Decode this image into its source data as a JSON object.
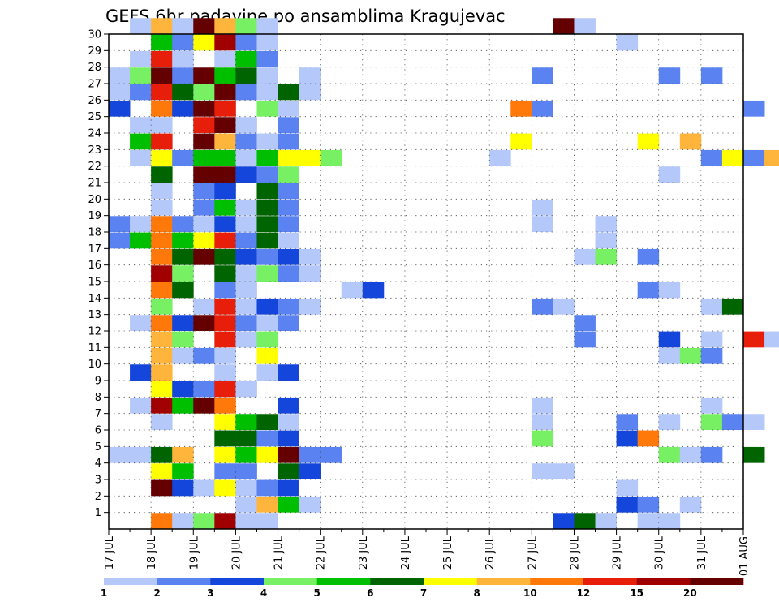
{
  "chart_data": {
    "type": "heatmap",
    "title": "GEFS 6hr padavine po ansamblima Kragujevac",
    "x_tick_labels": [
      "17 JUL",
      "18 JUL",
      "19 JUL",
      "20 JUL",
      "21 JUL",
      "22 JUL",
      "23 JUL",
      "24 JUL",
      "25 JUL",
      "26 JUL",
      "27 JUL",
      "28 JUL",
      "29 JUL",
      "30 JUL",
      "31 JUL",
      "01 AUG"
    ],
    "y_tick_labels": [
      "1",
      "2",
      "3",
      "4",
      "5",
      "6",
      "7",
      "8",
      "9",
      "10",
      "11",
      "12",
      "13",
      "14",
      "15",
      "16",
      "17",
      "18",
      "19",
      "20",
      "21",
      "22",
      "23",
      "24",
      "25",
      "26",
      "27",
      "28",
      "29",
      "30"
    ],
    "ylim": [
      0,
      30
    ],
    "grid": true,
    "legend": {
      "placement": "bottom",
      "colors": [
        "#b4c8fa",
        "#5a82f0",
        "#1446dc",
        "#78f064",
        "#00be00",
        "#006400",
        "#ffff00",
        "#ffb43c",
        "#ff780a",
        "#e61e0a",
        "#a00000",
        "#640000"
      ],
      "labels": [
        "1",
        "2",
        "3",
        "4",
        "5",
        "6",
        "7",
        "8",
        "10",
        "12",
        "15",
        "20"
      ]
    },
    "cells": [
      [
        1,
        30,
        1
      ],
      [
        2,
        30,
        8
      ],
      [
        3,
        30,
        1
      ],
      [
        4,
        30,
        12
      ],
      [
        5,
        30,
        8
      ],
      [
        6,
        30,
        4
      ],
      [
        7,
        30,
        1
      ],
      [
        21,
        30,
        12
      ],
      [
        22,
        30,
        1
      ],
      [
        2,
        29,
        5
      ],
      [
        3,
        29,
        2
      ],
      [
        4,
        29,
        7
      ],
      [
        5,
        29,
        11
      ],
      [
        6,
        29,
        2
      ],
      [
        7,
        29,
        1
      ],
      [
        24,
        29,
        1
      ],
      [
        1,
        28,
        1
      ],
      [
        2,
        28,
        10
      ],
      [
        3,
        28,
        1
      ],
      [
        5,
        28,
        1
      ],
      [
        6,
        28,
        5
      ],
      [
        7,
        28,
        2
      ],
      [
        0,
        27,
        1
      ],
      [
        1,
        27,
        4
      ],
      [
        2,
        27,
        12
      ],
      [
        3,
        27,
        2
      ],
      [
        4,
        27,
        12
      ],
      [
        5,
        27,
        5
      ],
      [
        6,
        27,
        6
      ],
      [
        7,
        27,
        1
      ],
      [
        9,
        27,
        1
      ],
      [
        20,
        27,
        2
      ],
      [
        26,
        27,
        2
      ],
      [
        28,
        27,
        2
      ],
      [
        0,
        26,
        1
      ],
      [
        1,
        26,
        2
      ],
      [
        2,
        26,
        10
      ],
      [
        3,
        26,
        6
      ],
      [
        4,
        26,
        4
      ],
      [
        5,
        26,
        12
      ],
      [
        6,
        26,
        2
      ],
      [
        7,
        26,
        1
      ],
      [
        8,
        26,
        6
      ],
      [
        9,
        26,
        1
      ],
      [
        0,
        25,
        3
      ],
      [
        2,
        25,
        9
      ],
      [
        3,
        25,
        3
      ],
      [
        4,
        25,
        12
      ],
      [
        5,
        25,
        10
      ],
      [
        7,
        25,
        4
      ],
      [
        8,
        25,
        1
      ],
      [
        19,
        25,
        9
      ],
      [
        20,
        25,
        2
      ],
      [
        30,
        25,
        2
      ],
      [
        1,
        24,
        1
      ],
      [
        2,
        24,
        1
      ],
      [
        4,
        24,
        10
      ],
      [
        5,
        24,
        12
      ],
      [
        6,
        24,
        1
      ],
      [
        8,
        24,
        2
      ],
      [
        1,
        23,
        5
      ],
      [
        2,
        23,
        10
      ],
      [
        4,
        23,
        12
      ],
      [
        5,
        23,
        8
      ],
      [
        6,
        23,
        2
      ],
      [
        7,
        23,
        1
      ],
      [
        8,
        23,
        2
      ],
      [
        19,
        23,
        7
      ],
      [
        25,
        23,
        7
      ],
      [
        27,
        23,
        8
      ],
      [
        1,
        22,
        1
      ],
      [
        2,
        22,
        7
      ],
      [
        3,
        22,
        2
      ],
      [
        4,
        22,
        5
      ],
      [
        5,
        22,
        5
      ],
      [
        6,
        22,
        1
      ],
      [
        7,
        22,
        5
      ],
      [
        8,
        22,
        7
      ],
      [
        9,
        22,
        7
      ],
      [
        10,
        22,
        4
      ],
      [
        18,
        22,
        1
      ],
      [
        28,
        22,
        2
      ],
      [
        29,
        22,
        7
      ],
      [
        30,
        22,
        2
      ],
      [
        31,
        22,
        8
      ],
      [
        32,
        22,
        7
      ],
      [
        2,
        21,
        6
      ],
      [
        4,
        21,
        12
      ],
      [
        5,
        21,
        12
      ],
      [
        6,
        21,
        3
      ],
      [
        7,
        21,
        2
      ],
      [
        8,
        21,
        4
      ],
      [
        26,
        21,
        1
      ],
      [
        2,
        20,
        1
      ],
      [
        4,
        20,
        2
      ],
      [
        5,
        20,
        3
      ],
      [
        7,
        20,
        6
      ],
      [
        8,
        20,
        2
      ],
      [
        2,
        19,
        1
      ],
      [
        4,
        19,
        2
      ],
      [
        5,
        19,
        5
      ],
      [
        6,
        19,
        1
      ],
      [
        7,
        19,
        6
      ],
      [
        8,
        19,
        2
      ],
      [
        20,
        19,
        1
      ],
      [
        0,
        18,
        2
      ],
      [
        1,
        18,
        1
      ],
      [
        2,
        18,
        9
      ],
      [
        3,
        18,
        2
      ],
      [
        4,
        18,
        1
      ],
      [
        5,
        18,
        3
      ],
      [
        6,
        18,
        1
      ],
      [
        7,
        18,
        6
      ],
      [
        8,
        18,
        2
      ],
      [
        20,
        18,
        1
      ],
      [
        23,
        18,
        1
      ],
      [
        0,
        17,
        2
      ],
      [
        1,
        17,
        5
      ],
      [
        2,
        17,
        9
      ],
      [
        3,
        17,
        5
      ],
      [
        4,
        17,
        7
      ],
      [
        5,
        17,
        10
      ],
      [
        6,
        17,
        2
      ],
      [
        7,
        17,
        6
      ],
      [
        8,
        17,
        1
      ],
      [
        23,
        17,
        1
      ],
      [
        2,
        16,
        9
      ],
      [
        3,
        16,
        6
      ],
      [
        4,
        16,
        12
      ],
      [
        5,
        16,
        6
      ],
      [
        6,
        16,
        3
      ],
      [
        7,
        16,
        2
      ],
      [
        8,
        16,
        3
      ],
      [
        9,
        16,
        1
      ],
      [
        22,
        16,
        1
      ],
      [
        23,
        16,
        4
      ],
      [
        25,
        16,
        2
      ],
      [
        2,
        15,
        11
      ],
      [
        3,
        15,
        4
      ],
      [
        5,
        15,
        6
      ],
      [
        6,
        15,
        1
      ],
      [
        7,
        15,
        4
      ],
      [
        8,
        15,
        2
      ],
      [
        9,
        15,
        1
      ],
      [
        2,
        14,
        9
      ],
      [
        3,
        14,
        6
      ],
      [
        5,
        14,
        2
      ],
      [
        6,
        14,
        1
      ],
      [
        11,
        14,
        1
      ],
      [
        12,
        14,
        3
      ],
      [
        25,
        14,
        2
      ],
      [
        26,
        14,
        1
      ],
      [
        2,
        13,
        4
      ],
      [
        4,
        13,
        1
      ],
      [
        5,
        13,
        10
      ],
      [
        6,
        13,
        1
      ],
      [
        7,
        13,
        3
      ],
      [
        8,
        13,
        2
      ],
      [
        9,
        13,
        1
      ],
      [
        20,
        13,
        2
      ],
      [
        21,
        13,
        1
      ],
      [
        28,
        13,
        1
      ],
      [
        29,
        13,
        6
      ],
      [
        1,
        12,
        1
      ],
      [
        2,
        12,
        9
      ],
      [
        3,
        12,
        3
      ],
      [
        4,
        12,
        12
      ],
      [
        5,
        12,
        10
      ],
      [
        6,
        12,
        2
      ],
      [
        7,
        12,
        1
      ],
      [
        8,
        12,
        2
      ],
      [
        22,
        12,
        2
      ],
      [
        2,
        11,
        8
      ],
      [
        3,
        11,
        4
      ],
      [
        5,
        11,
        10
      ],
      [
        6,
        11,
        1
      ],
      [
        7,
        11,
        4
      ],
      [
        22,
        11,
        2
      ],
      [
        26,
        11,
        3
      ],
      [
        28,
        11,
        1
      ],
      [
        30,
        11,
        10
      ],
      [
        31,
        11,
        1
      ],
      [
        2,
        10,
        8
      ],
      [
        3,
        10,
        1
      ],
      [
        4,
        10,
        2
      ],
      [
        5,
        10,
        1
      ],
      [
        7,
        10,
        7
      ],
      [
        26,
        10,
        1
      ],
      [
        27,
        10,
        4
      ],
      [
        28,
        10,
        2
      ],
      [
        1,
        9,
        3
      ],
      [
        2,
        9,
        8
      ],
      [
        5,
        9,
        1
      ],
      [
        7,
        9,
        1
      ],
      [
        8,
        9,
        3
      ],
      [
        2,
        8,
        7
      ],
      [
        3,
        8,
        3
      ],
      [
        4,
        8,
        2
      ],
      [
        5,
        8,
        10
      ],
      [
        6,
        8,
        1
      ],
      [
        1,
        7,
        1
      ],
      [
        2,
        7,
        11
      ],
      [
        3,
        7,
        5
      ],
      [
        4,
        7,
        12
      ],
      [
        5,
        7,
        9
      ],
      [
        8,
        7,
        3
      ],
      [
        20,
        7,
        1
      ],
      [
        28,
        7,
        1
      ],
      [
        2,
        6,
        1
      ],
      [
        5,
        6,
        7
      ],
      [
        6,
        6,
        5
      ],
      [
        7,
        6,
        6
      ],
      [
        8,
        6,
        1
      ],
      [
        20,
        6,
        1
      ],
      [
        24,
        6,
        2
      ],
      [
        26,
        6,
        1
      ],
      [
        28,
        6,
        4
      ],
      [
        29,
        6,
        2
      ],
      [
        30,
        6,
        1
      ],
      [
        5,
        5,
        6
      ],
      [
        6,
        5,
        6
      ],
      [
        7,
        5,
        2
      ],
      [
        8,
        5,
        3
      ],
      [
        20,
        5,
        4
      ],
      [
        24,
        5,
        3
      ],
      [
        25,
        5,
        9
      ],
      [
        0,
        4,
        1
      ],
      [
        1,
        4,
        1
      ],
      [
        2,
        4,
        6
      ],
      [
        3,
        4,
        8
      ],
      [
        5,
        4,
        7
      ],
      [
        6,
        4,
        5
      ],
      [
        7,
        4,
        7
      ],
      [
        8,
        4,
        12
      ],
      [
        9,
        4,
        2
      ],
      [
        10,
        4,
        2
      ],
      [
        26,
        4,
        4
      ],
      [
        27,
        4,
        1
      ],
      [
        28,
        4,
        2
      ],
      [
        30,
        4,
        6
      ],
      [
        2,
        3,
        7
      ],
      [
        3,
        3,
        5
      ],
      [
        5,
        3,
        2
      ],
      [
        6,
        3,
        2
      ],
      [
        8,
        3,
        6
      ],
      [
        9,
        3,
        3
      ],
      [
        20,
        3,
        1
      ],
      [
        21,
        3,
        1
      ],
      [
        2,
        2,
        12
      ],
      [
        3,
        2,
        3
      ],
      [
        4,
        2,
        1
      ],
      [
        5,
        2,
        7
      ],
      [
        6,
        2,
        1
      ],
      [
        7,
        2,
        2
      ],
      [
        8,
        2,
        3
      ],
      [
        24,
        2,
        1
      ],
      [
        6,
        1,
        1
      ],
      [
        7,
        1,
        8
      ],
      [
        8,
        1,
        5
      ],
      [
        9,
        1,
        1
      ],
      [
        24,
        1,
        3
      ],
      [
        25,
        1,
        2
      ],
      [
        27,
        1,
        1
      ],
      [
        2,
        0,
        9
      ],
      [
        3,
        0,
        1
      ],
      [
        4,
        0,
        4
      ],
      [
        5,
        0,
        11
      ],
      [
        6,
        0,
        1
      ],
      [
        7,
        0,
        1
      ],
      [
        21,
        0,
        3
      ],
      [
        22,
        0,
        6
      ],
      [
        23,
        0,
        1
      ],
      [
        25,
        0,
        1
      ],
      [
        26,
        0,
        1
      ]
    ]
  }
}
